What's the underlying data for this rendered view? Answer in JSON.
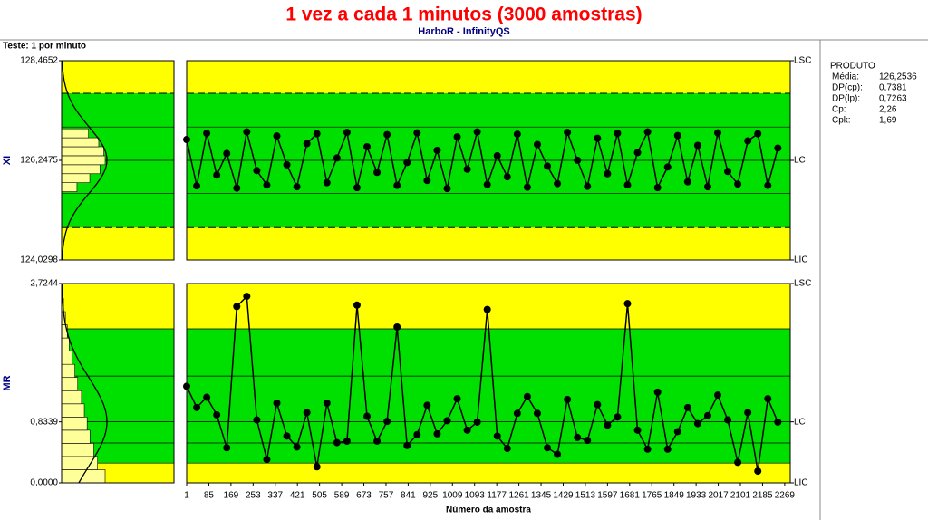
{
  "header": {
    "title": "1 vez a cada 1 minutos (3000 amostras)",
    "subtitle": "HarboR - InfinityQS",
    "test_label": "Teste: 1 por minuto"
  },
  "chart_data": [
    {
      "type": "control",
      "y_label": "XI",
      "x": [
        1,
        39,
        77,
        115,
        153,
        191,
        229,
        267,
        305,
        343,
        381,
        419,
        457,
        495,
        533,
        571,
        609,
        647,
        685,
        723,
        761,
        799,
        837,
        875,
        913,
        951,
        989,
        1027,
        1065,
        1103,
        1141,
        1179,
        1217,
        1255,
        1293,
        1331,
        1369,
        1407,
        1445,
        1483,
        1521,
        1559,
        1597,
        1635,
        1673,
        1711,
        1749,
        1787,
        1825,
        1863,
        1901,
        1939,
        1977,
        2015,
        2053,
        2091,
        2129,
        2167,
        2205,
        2243
      ],
      "values": [
        126.71,
        125.68,
        126.85,
        125.92,
        126.4,
        125.63,
        126.88,
        126.02,
        125.7,
        126.79,
        126.15,
        125.66,
        126.62,
        126.84,
        125.75,
        126.3,
        126.87,
        125.64,
        126.55,
        125.98,
        126.82,
        125.69,
        126.2,
        126.86,
        125.8,
        126.47,
        125.62,
        126.77,
        126.05,
        126.88,
        125.71,
        126.35,
        125.88,
        126.83,
        125.65,
        126.6,
        126.12,
        125.73,
        126.87,
        126.25,
        125.67,
        126.74,
        125.95,
        126.85,
        125.7,
        126.42,
        126.88,
        125.64,
        126.1,
        126.8,
        125.77,
        126.58,
        125.66,
        126.86,
        126.0,
        125.72,
        126.68,
        126.84,
        125.69,
        126.52
      ],
      "xlim": [
        1,
        2290
      ],
      "ylim": [
        124.0298,
        128.4652
      ],
      "yticks": [
        {
          "value": 128.4652,
          "label": "128,4652"
        },
        {
          "value": 126.2475,
          "label": "126,2475"
        },
        {
          "value": 124.0298,
          "label": "124,0298"
        }
      ],
      "limits": [
        {
          "label": "LSC",
          "value": 128.4652
        },
        {
          "label": "LC",
          "value": 126.2475
        },
        {
          "label": "LIC",
          "value": 124.0298
        }
      ],
      "green_band": [
        124.75,
        127.74
      ],
      "dashed_lines": [
        127.74,
        124.75
      ],
      "zone_lines": [
        126.99,
        126.2475,
        125.51
      ],
      "histogram": {
        "bins": [
          125.55,
          125.75,
          125.95,
          126.15,
          126.35,
          126.55,
          126.75,
          126.95
        ],
        "counts": [
          12,
          22,
          30,
          34,
          33,
          29,
          21
        ]
      },
      "curve": {
        "mean": 126.2536,
        "sd": 0.7381
      }
    },
    {
      "type": "control",
      "y_label": "MR",
      "x_label": "Número da amostra",
      "x": [
        1,
        39,
        77,
        115,
        153,
        191,
        229,
        267,
        305,
        343,
        381,
        419,
        457,
        495,
        533,
        571,
        609,
        647,
        685,
        723,
        761,
        799,
        837,
        875,
        913,
        951,
        989,
        1027,
        1065,
        1103,
        1141,
        1179,
        1217,
        1255,
        1293,
        1331,
        1369,
        1407,
        1445,
        1483,
        1521,
        1559,
        1597,
        1635,
        1673,
        1711,
        1749,
        1787,
        1825,
        1863,
        1901,
        1939,
        1977,
        2015,
        2053,
        2091,
        2129,
        2167,
        2205,
        2243
      ],
      "values": [
        1.32,
        1.03,
        1.17,
        0.93,
        0.48,
        2.41,
        2.55,
        0.86,
        0.32,
        1.09,
        0.64,
        0.49,
        0.96,
        0.22,
        1.09,
        0.55,
        0.57,
        2.43,
        0.91,
        0.57,
        0.84,
        2.13,
        0.51,
        0.66,
        1.06,
        0.67,
        0.85,
        1.15,
        0.72,
        0.83,
        2.37,
        0.64,
        0.47,
        0.95,
        1.18,
        0.95,
        0.48,
        0.39,
        1.14,
        0.62,
        0.58,
        1.07,
        0.79,
        0.9,
        2.45,
        0.72,
        0.46,
        1.24,
        0.46,
        0.7,
        1.03,
        0.81,
        0.92,
        1.2,
        0.86,
        0.28,
        0.96,
        0.16,
        1.15,
        0.83
      ],
      "xlim": [
        1,
        2290
      ],
      "xticks": [
        1,
        85,
        169,
        253,
        337,
        421,
        505,
        589,
        673,
        757,
        841,
        925,
        1009,
        1093,
        1177,
        1261,
        1345,
        1429,
        1513,
        1597,
        1681,
        1765,
        1849,
        1933,
        2017,
        2101,
        2185,
        2269
      ],
      "ylim": [
        0,
        2.7244
      ],
      "yticks": [
        {
          "value": 2.7244,
          "label": "2,7244"
        },
        {
          "value": 0.8339,
          "label": "0,8339"
        },
        {
          "value": 0,
          "label": "0,0000"
        }
      ],
      "limits": [
        {
          "label": "LSC",
          "value": 2.7244
        },
        {
          "label": "LC",
          "value": 0.8339
        },
        {
          "label": "LIC",
          "value": 0
        }
      ],
      "green_band": [
        0.27,
        2.105
      ],
      "dashed_lines": [],
      "zone_lines": [
        2.105,
        1.46,
        0.8339,
        0.545,
        0.27
      ],
      "histogram": {
        "bins": [
          0,
          0.18,
          0.36,
          0.54,
          0.72,
          0.9,
          1.08,
          1.26,
          1.44,
          1.62,
          1.8,
          1.98,
          2.16,
          2.34,
          2.52,
          2.7
        ],
        "counts": [
          46,
          38,
          34,
          30,
          27,
          24,
          21,
          17,
          14,
          11,
          8,
          6,
          4,
          2,
          1
        ]
      },
      "curve": {
        "mean": 0.8339,
        "sd": 0.6
      }
    }
  ],
  "stats": {
    "title": "PRODUTO",
    "rows": [
      [
        "Média:",
        "126,2536"
      ],
      [
        "DP(cp):",
        "0,7381"
      ],
      [
        "DP(lp):",
        "0,7263"
      ],
      [
        "Cp:",
        "2,26"
      ],
      [
        "Cpk:",
        "1,69"
      ]
    ]
  }
}
